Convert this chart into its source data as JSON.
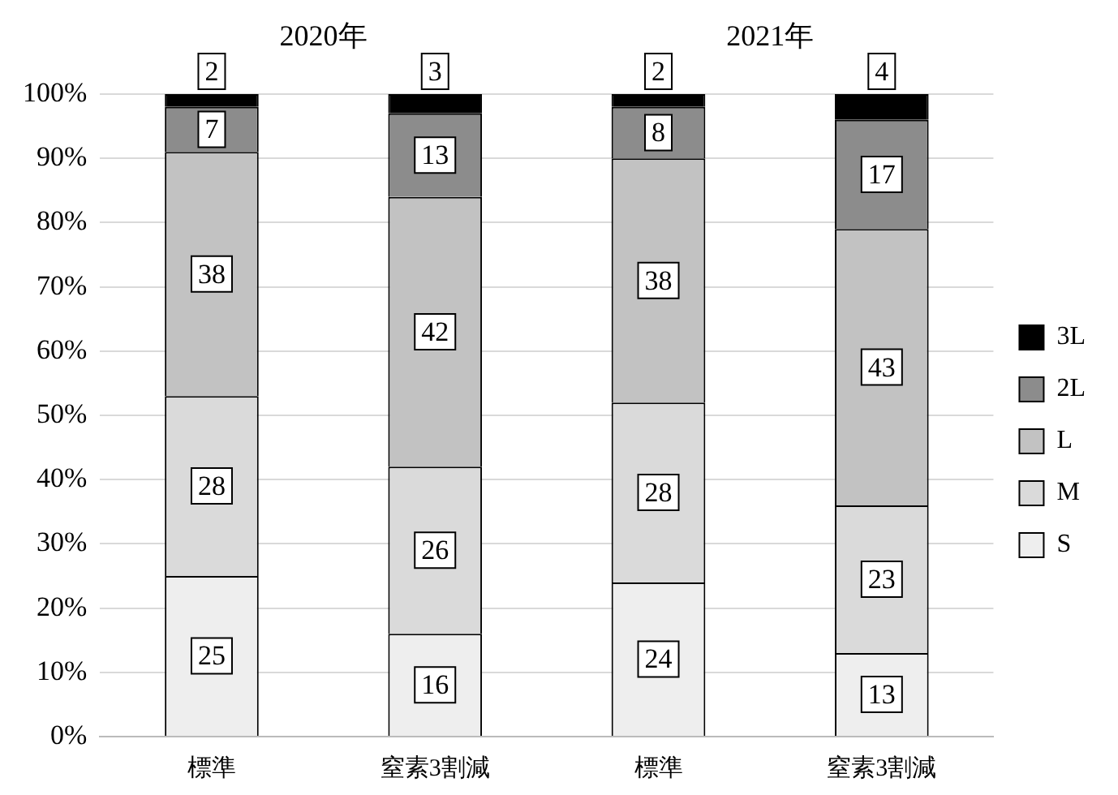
{
  "chart_data": {
    "type": "bar",
    "stacked": true,
    "categories": [
      "標準",
      "窒素3割減",
      "標準",
      "窒素3割減"
    ],
    "series": [
      {
        "name": "S",
        "color": "#eeeeee",
        "values": [
          25,
          16,
          24,
          13
        ]
      },
      {
        "name": "M",
        "color": "#dadada",
        "values": [
          28,
          26,
          28,
          23
        ]
      },
      {
        "name": "L",
        "color": "#c2c2c2",
        "values": [
          38,
          42,
          38,
          43
        ]
      },
      {
        "name": "2L",
        "color": "#8c8c8c",
        "values": [
          7,
          13,
          8,
          17
        ]
      },
      {
        "name": "3L",
        "color": "#000000",
        "values": [
          2,
          3,
          2,
          4
        ]
      }
    ],
    "ylim": [
      0,
      100
    ],
    "yticks": [
      {
        "value": 0,
        "label": "0%"
      },
      {
        "value": 10,
        "label": "10%"
      },
      {
        "value": 20,
        "label": "20%"
      },
      {
        "value": 30,
        "label": "30%"
      },
      {
        "value": 40,
        "label": "40%"
      },
      {
        "value": 50,
        "label": "50%"
      },
      {
        "value": 60,
        "label": "60%"
      },
      {
        "value": 70,
        "label": "70%"
      },
      {
        "value": 80,
        "label": "80%"
      },
      {
        "value": 90,
        "label": "90%"
      },
      {
        "value": 100,
        "label": "100%"
      }
    ],
    "grid": "y",
    "legend": "right",
    "data_labels": true,
    "annotations": [
      "2020年",
      "2021年"
    ]
  }
}
